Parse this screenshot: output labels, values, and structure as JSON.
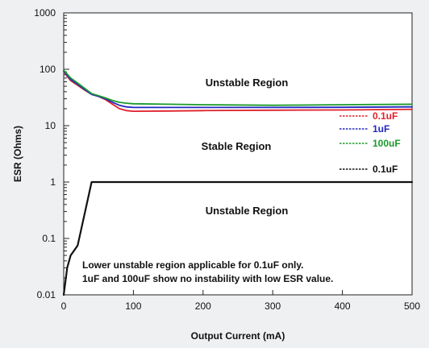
{
  "chart_data": {
    "type": "line",
    "xlabel": "Output Current (mA)",
    "ylabel": "ESR (Ohms)",
    "xlim": [
      0,
      500
    ],
    "ylim": [
      0.01,
      1000
    ],
    "y_scale": "log",
    "x_ticks": [
      0,
      100,
      200,
      300,
      400,
      500
    ],
    "x_tick_labels": [
      "0",
      "100",
      "200",
      "300",
      "400",
      "500"
    ],
    "y_ticks": [
      0.01,
      0.1,
      1,
      10,
      100,
      1000
    ],
    "y_tick_labels": [
      "0.01",
      "0.1",
      "1",
      "10",
      "100",
      "1000"
    ],
    "grid": false,
    "legend_placement": "right",
    "annotations": {
      "upper_region": "Unstable Region",
      "middle_region": "Stable Region",
      "lower_region": "Unstable Region",
      "note_line1": "Lower unstable region applicable for 0.1uF only.",
      "note_line2": "1uF and 100uF show no instability with low ESR value."
    },
    "series": [
      {
        "name": "0.1uF",
        "color": "#e0202a",
        "style": "solid",
        "x": [
          0,
          5,
          10,
          20,
          30,
          40,
          50,
          60,
          70,
          80,
          90,
          100,
          150,
          200,
          300,
          400,
          500
        ],
        "y": [
          92,
          75,
          63,
          52,
          43,
          36,
          33,
          29,
          24,
          20,
          18.5,
          18,
          18.2,
          18.5,
          18.8,
          19,
          19.5
        ]
      },
      {
        "name": "1uF",
        "color": "#2028c0",
        "style": "solid",
        "x": [
          0,
          5,
          10,
          20,
          30,
          40,
          50,
          60,
          70,
          80,
          90,
          100,
          150,
          200,
          300,
          400,
          500
        ],
        "y": [
          94,
          78,
          66,
          54,
          44,
          36,
          33,
          30,
          26,
          23,
          21.5,
          21,
          21,
          21,
          21,
          21.2,
          21.5
        ]
      },
      {
        "name": "100uF",
        "color": "#1a9a2a",
        "style": "solid",
        "x": [
          0,
          5,
          10,
          20,
          30,
          40,
          50,
          60,
          70,
          80,
          90,
          100,
          150,
          200,
          300,
          400,
          500
        ],
        "y": [
          96,
          82,
          70,
          57,
          46,
          37,
          34,
          31,
          28,
          26,
          25,
          24.5,
          24,
          23.5,
          23,
          23.5,
          24
        ]
      },
      {
        "name": "0.1uF",
        "color": "#111111",
        "style": "solid",
        "x": [
          0,
          5,
          10,
          20,
          40,
          100,
          200,
          300,
          400,
          500
        ],
        "y": [
          0.01,
          0.03,
          0.05,
          0.075,
          1,
          1,
          1,
          1,
          1,
          1
        ]
      }
    ]
  }
}
